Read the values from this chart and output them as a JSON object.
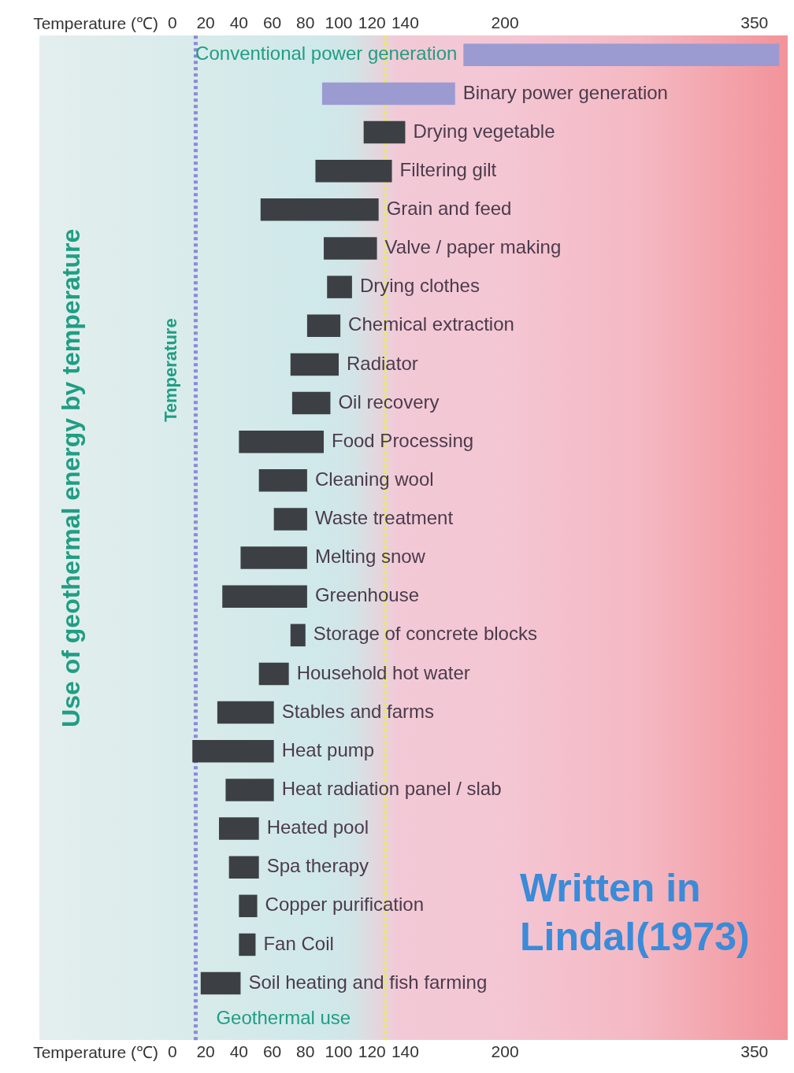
{
  "chart_data": {
    "type": "bar",
    "orientation": "horizontal",
    "xlabel": "Temperature (℃)",
    "x2label": "Temperature (℃)",
    "ylabel": "Use of geothermal energy by temperature",
    "categories": [
      "Conventional power generation",
      "Binary power generation",
      "Drying vegetable",
      "Filtering gilt",
      "Grain and feed",
      "Valve / paper making",
      "Drying clothes",
      "Chemical extraction",
      "Radiator",
      "Oil recovery",
      "Food Processing",
      "Cleaning wool",
      "Waste treatment",
      "Melting snow",
      "Greenhouse",
      "Storage of concrete blocks",
      "Household hot water",
      "Stables and farms",
      "Heat pump",
      "Heat radiation panel / slab",
      "Heated pool",
      "Spa therapy",
      "Copper purification",
      "Fan Coil",
      "Soil heating and fish farming",
      null
    ],
    "base": [
      175,
      90,
      115,
      86,
      53,
      91,
      93,
      81,
      71,
      72,
      40,
      52,
      61,
      41,
      30,
      71,
      52,
      27,
      12,
      32,
      28,
      34,
      40,
      40,
      17,
      null
    ],
    "values": [
      190,
      80,
      25,
      46,
      71,
      32,
      15,
      20,
      29,
      23,
      51,
      29,
      20,
      40,
      51,
      9,
      18,
      34,
      49,
      29,
      24,
      18,
      11,
      10,
      24,
      null
    ],
    "colors": [
      "#9b9bd2",
      "#9b9bd2",
      "#3c4045",
      "#3c4045",
      "#3c4045",
      "#3c4045",
      "#3c4045",
      "#3c4045",
      "#3c4045",
      "#3c4045",
      "#3c4045",
      "#3c4045",
      "#3c4045",
      "#3c4045",
      "#3c4045",
      "#3c4045",
      "#3c4045",
      "#3c4045",
      "#3c4045",
      "#3c4045",
      "#3c4045",
      "#3c4045",
      "#3c4045",
      "#3c4045",
      "#3c4045",
      "#3c4045"
    ],
    "xlim": [
      -80,
      370
    ],
    "xticks": [
      0,
      20,
      40,
      60,
      80,
      100,
      120,
      140,
      200,
      350
    ],
    "x2lim": [
      -80,
      370
    ],
    "x2ticks": [
      0,
      20,
      40,
      60,
      80,
      100,
      120,
      140,
      200,
      350
    ],
    "ref_lines": [
      {
        "axis": "x",
        "value": 14,
        "label": "Geothermal use",
        "color": "#8a8ad8",
        "line_style": "dotted"
      },
      {
        "axis": "x",
        "value": 128,
        "label": null,
        "color": "#e6e67a",
        "line_style": "dotted"
      }
    ],
    "annotations": [
      "Temperature",
      "Written in Lindal(1973)"
    ],
    "grid": false,
    "legend": false
  }
}
